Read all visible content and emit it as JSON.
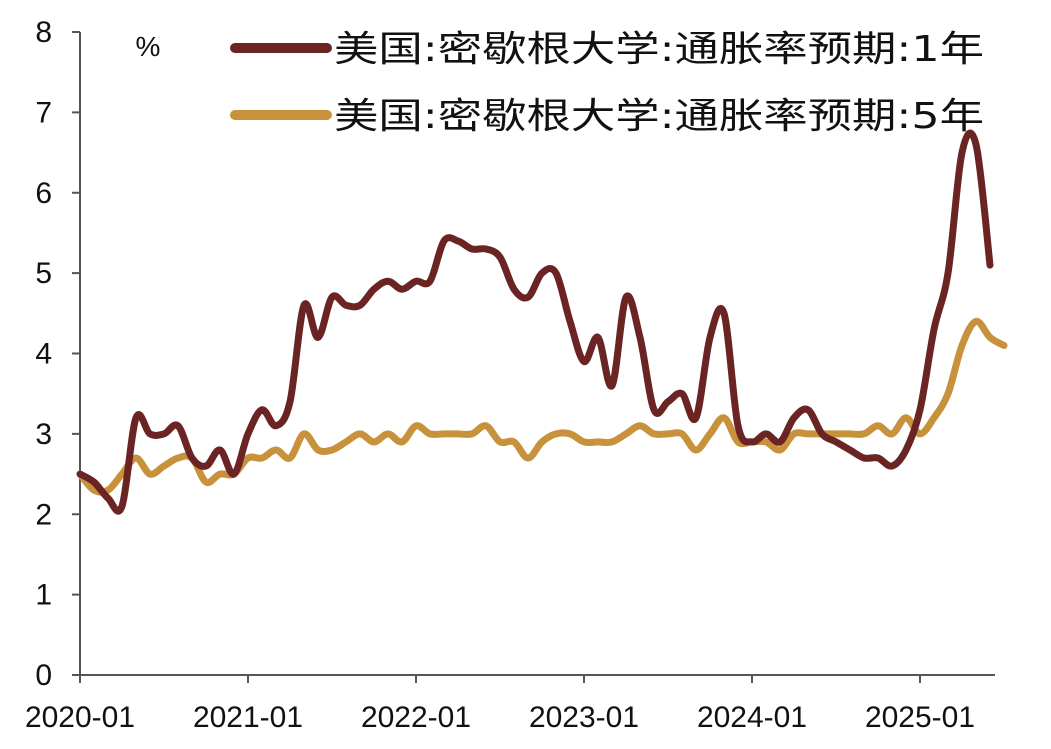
{
  "chart_data": {
    "type": "line",
    "ylabel": "%",
    "ylim": [
      0,
      8
    ],
    "yticks": [
      "0",
      "1",
      "2",
      "3",
      "4",
      "5",
      "6",
      "7",
      "8"
    ],
    "x_ticks": [
      "2020-01",
      "2021-01",
      "2022-01",
      "2023-01",
      "2024-01",
      "2025-01"
    ],
    "x_start": "2020-01",
    "x_end": "2025-05",
    "grid": false,
    "legend_position": "top-right",
    "series": [
      {
        "name": "美国:密歇根大学:通胀率预期:1年",
        "color": "#6b2424",
        "values": [
          [
            "2020-01",
            2.5
          ],
          [
            "2020-02",
            2.4
          ],
          [
            "2020-03",
            2.2
          ],
          [
            "2020-04",
            2.1
          ],
          [
            "2020-05",
            3.2
          ],
          [
            "2020-06",
            3.0
          ],
          [
            "2020-07",
            3.0
          ],
          [
            "2020-08",
            3.1
          ],
          [
            "2020-09",
            2.7
          ],
          [
            "2020-10",
            2.6
          ],
          [
            "2020-11",
            2.8
          ],
          [
            "2020-12",
            2.5
          ],
          [
            "2021-01",
            3.0
          ],
          [
            "2021-02",
            3.3
          ],
          [
            "2021-03",
            3.1
          ],
          [
            "2021-04",
            3.4
          ],
          [
            "2021-05",
            4.6
          ],
          [
            "2021-06",
            4.2
          ],
          [
            "2021-07",
            4.7
          ],
          [
            "2021-08",
            4.6
          ],
          [
            "2021-09",
            4.6
          ],
          [
            "2021-10",
            4.8
          ],
          [
            "2021-11",
            4.9
          ],
          [
            "2021-12",
            4.8
          ],
          [
            "2022-01",
            4.9
          ],
          [
            "2022-02",
            4.9
          ],
          [
            "2022-03",
            5.4
          ],
          [
            "2022-04",
            5.4
          ],
          [
            "2022-05",
            5.3
          ],
          [
            "2022-06",
            5.3
          ],
          [
            "2022-07",
            5.2
          ],
          [
            "2022-08",
            4.8
          ],
          [
            "2022-09",
            4.7
          ],
          [
            "2022-10",
            5.0
          ],
          [
            "2022-11",
            5.0
          ],
          [
            "2022-12",
            4.4
          ],
          [
            "2023-01",
            3.9
          ],
          [
            "2023-02",
            4.2
          ],
          [
            "2023-03",
            3.6
          ],
          [
            "2023-04",
            4.7
          ],
          [
            "2023-05",
            4.2
          ],
          [
            "2023-06",
            3.3
          ],
          [
            "2023-07",
            3.4
          ],
          [
            "2023-08",
            3.5
          ],
          [
            "2023-09",
            3.2
          ],
          [
            "2023-10",
            4.2
          ],
          [
            "2023-11",
            4.5
          ],
          [
            "2023-12",
            3.1
          ],
          [
            "2024-01",
            2.9
          ],
          [
            "2024-02",
            3.0
          ],
          [
            "2024-03",
            2.9
          ],
          [
            "2024-04",
            3.2
          ],
          [
            "2024-05",
            3.3
          ],
          [
            "2024-06",
            3.0
          ],
          [
            "2024-07",
            2.9
          ],
          [
            "2024-08",
            2.8
          ],
          [
            "2024-09",
            2.7
          ],
          [
            "2024-10",
            2.7
          ],
          [
            "2024-11",
            2.6
          ],
          [
            "2024-12",
            2.8
          ],
          [
            "2025-01",
            3.3
          ],
          [
            "2025-02",
            4.3
          ],
          [
            "2025-03",
            5.0
          ],
          [
            "2025-04",
            6.5
          ],
          [
            "2025-05",
            6.6
          ],
          [
            "2025-06",
            5.1
          ]
        ]
      },
      {
        "name": "美国:密歇根大学:通胀率预期:5年",
        "color": "#c8913b",
        "values": [
          [
            "2020-01",
            2.5
          ],
          [
            "2020-02",
            2.3
          ],
          [
            "2020-03",
            2.3
          ],
          [
            "2020-04",
            2.5
          ],
          [
            "2020-05",
            2.7
          ],
          [
            "2020-06",
            2.5
          ],
          [
            "2020-07",
            2.6
          ],
          [
            "2020-08",
            2.7
          ],
          [
            "2020-09",
            2.7
          ],
          [
            "2020-10",
            2.4
          ],
          [
            "2020-11",
            2.5
          ],
          [
            "2020-12",
            2.5
          ],
          [
            "2021-01",
            2.7
          ],
          [
            "2021-02",
            2.7
          ],
          [
            "2021-03",
            2.8
          ],
          [
            "2021-04",
            2.7
          ],
          [
            "2021-05",
            3.0
          ],
          [
            "2021-06",
            2.8
          ],
          [
            "2021-07",
            2.8
          ],
          [
            "2021-08",
            2.9
          ],
          [
            "2021-09",
            3.0
          ],
          [
            "2021-10",
            2.9
          ],
          [
            "2021-11",
            3.0
          ],
          [
            "2021-12",
            2.9
          ],
          [
            "2022-01",
            3.1
          ],
          [
            "2022-02",
            3.0
          ],
          [
            "2022-03",
            3.0
          ],
          [
            "2022-04",
            3.0
          ],
          [
            "2022-05",
            3.0
          ],
          [
            "2022-06",
            3.1
          ],
          [
            "2022-07",
            2.9
          ],
          [
            "2022-08",
            2.9
          ],
          [
            "2022-09",
            2.7
          ],
          [
            "2022-10",
            2.9
          ],
          [
            "2022-11",
            3.0
          ],
          [
            "2022-12",
            3.0
          ],
          [
            "2023-01",
            2.9
          ],
          [
            "2023-02",
            2.9
          ],
          [
            "2023-03",
            2.9
          ],
          [
            "2023-04",
            3.0
          ],
          [
            "2023-05",
            3.1
          ],
          [
            "2023-06",
            3.0
          ],
          [
            "2023-07",
            3.0
          ],
          [
            "2023-08",
            3.0
          ],
          [
            "2023-09",
            2.8
          ],
          [
            "2023-10",
            3.0
          ],
          [
            "2023-11",
            3.2
          ],
          [
            "2023-12",
            2.9
          ],
          [
            "2024-01",
            2.9
          ],
          [
            "2024-02",
            2.9
          ],
          [
            "2024-03",
            2.8
          ],
          [
            "2024-04",
            3.0
          ],
          [
            "2024-05",
            3.0
          ],
          [
            "2024-06",
            3.0
          ],
          [
            "2024-07",
            3.0
          ],
          [
            "2024-08",
            3.0
          ],
          [
            "2024-09",
            3.0
          ],
          [
            "2024-10",
            3.1
          ],
          [
            "2024-11",
            3.0
          ],
          [
            "2024-12",
            3.2
          ],
          [
            "2025-01",
            3.0
          ],
          [
            "2025-02",
            3.2
          ],
          [
            "2025-03",
            3.5
          ],
          [
            "2025-04",
            4.1
          ],
          [
            "2025-05",
            4.4
          ],
          [
            "2025-06",
            4.2
          ],
          [
            "2025-07",
            4.1
          ]
        ]
      }
    ]
  }
}
